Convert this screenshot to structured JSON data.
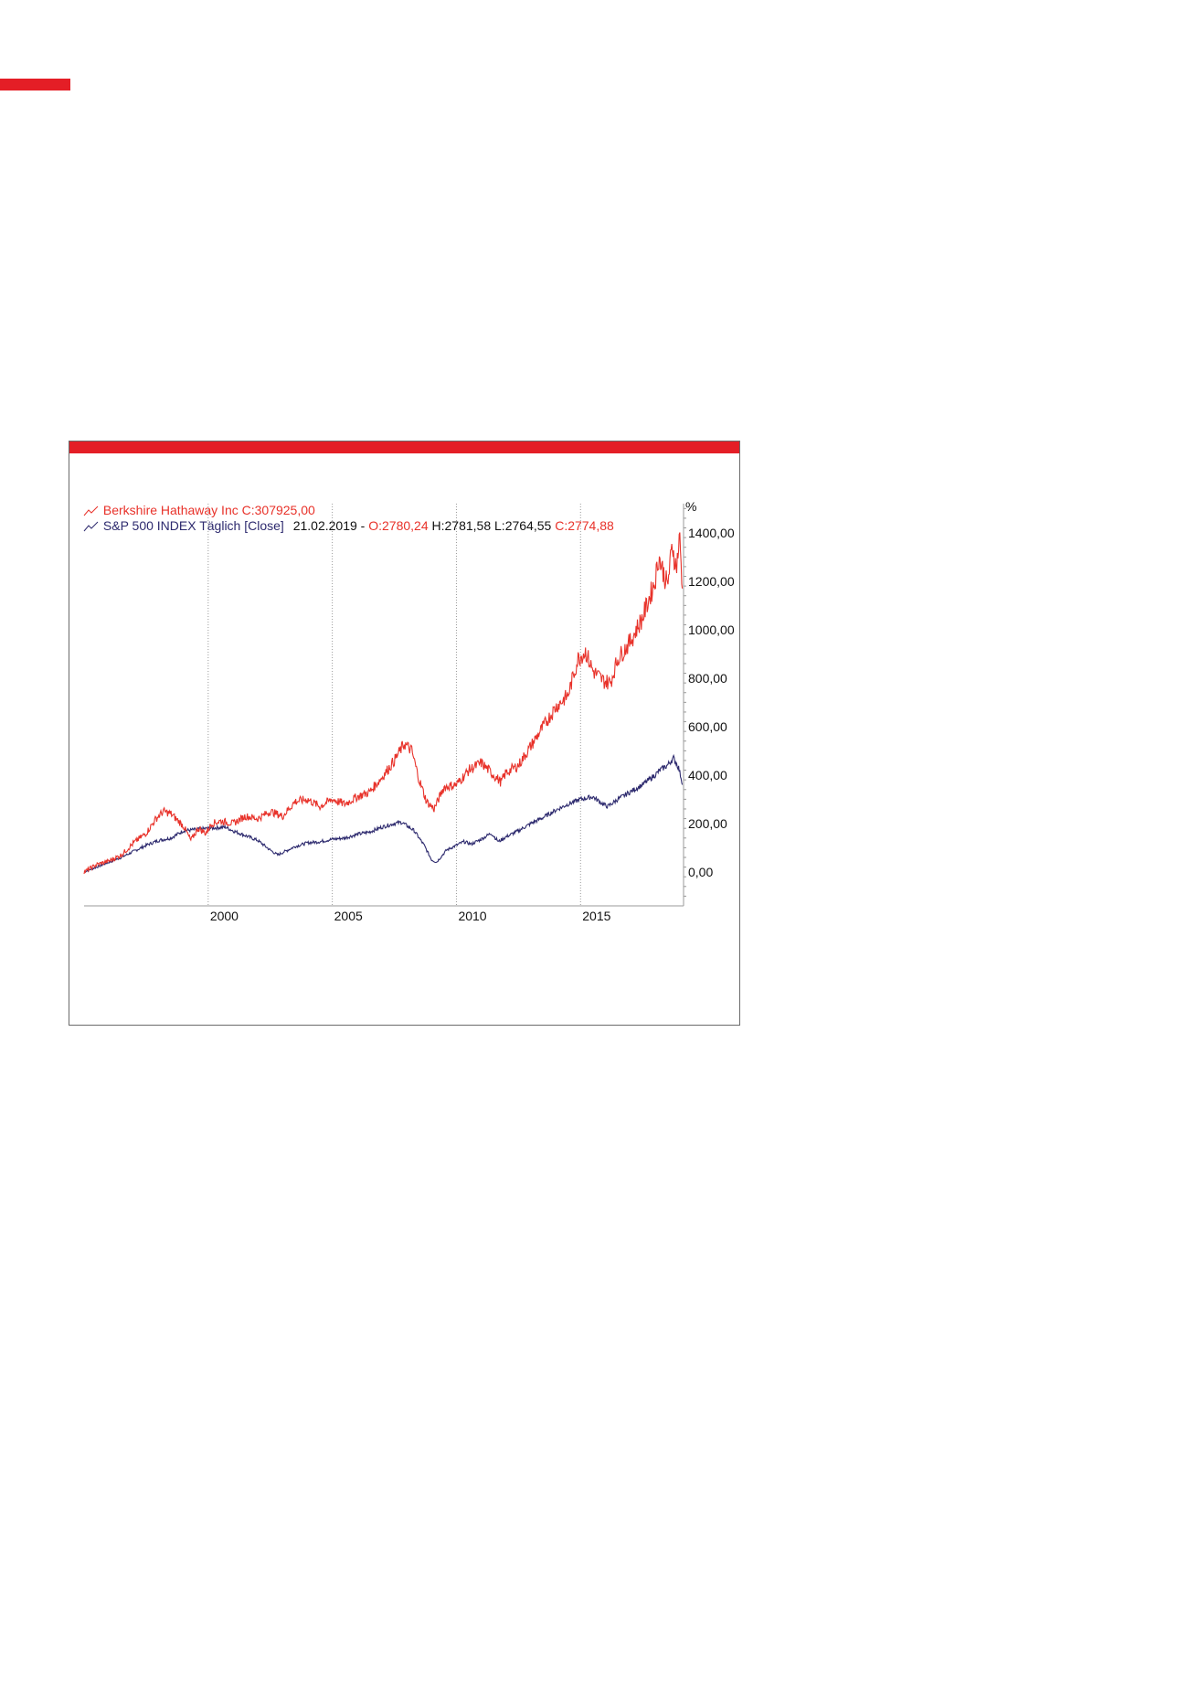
{
  "chart_data": {
    "type": "line",
    "title": "",
    "y_unit_label": "%",
    "x_tick_labels": [
      "2000",
      "2005",
      "2010",
      "2015"
    ],
    "y_tick_labels": [
      "1400,00",
      "1200,00",
      "1000,00",
      "800,00",
      "600,00",
      "400,00",
      "200,00",
      "0,00"
    ],
    "y_ticks": [
      1400,
      1200,
      1000,
      800,
      600,
      400,
      200,
      0
    ],
    "xlim": [
      1995.0,
      2019.15
    ],
    "ylim": [
      -140,
      1520
    ],
    "grid": "vertical dotted lines at year ticks",
    "legend_placement": "top-left",
    "colors": {
      "brk": "#e8322a",
      "spx": "#2d2a6e",
      "accent": "#e41e26"
    },
    "legend": {
      "brk_label": "Berkshire Hathaway Inc C:307925,00",
      "spx_label": "S&P 500 INDEX Täglich [Close]",
      "date": "21.02.2019",
      "sep": "-",
      "open": "O:2780,24",
      "high": "H:2781,58",
      "low": "L:2764,55",
      "close": "C:2774,88"
    },
    "series": [
      {
        "name": "Berkshire Hathaway Inc",
        "color": "#e8322a",
        "x": [
          1995.0,
          1995.5,
          1996.0,
          1996.5,
          1997.0,
          1997.5,
          1997.9,
          1998.2,
          1998.5,
          1998.8,
          1999.0,
          1999.3,
          1999.6,
          1999.9,
          2000.15,
          2000.5,
          2001.0,
          2001.5,
          2002.0,
          2002.5,
          2003.0,
          2003.5,
          2004.0,
          2004.5,
          2005.0,
          2005.5,
          2006.0,
          2006.5,
          2007.0,
          2007.5,
          2007.9,
          2008.2,
          2008.5,
          2008.8,
          2009.1,
          2009.5,
          2010.0,
          2010.5,
          2011.0,
          2011.5,
          2011.8,
          2012.0,
          2012.5,
          2013.0,
          2013.5,
          2014.0,
          2014.5,
          2014.9,
          2015.2,
          2015.5,
          2015.9,
          2016.2,
          2016.5,
          2017.0,
          2017.5,
          2018.0,
          2018.15,
          2018.3,
          2018.5,
          2018.7,
          2018.85,
          2019.0,
          2019.1
        ],
        "y": [
          0,
          30,
          45,
          70,
          120,
          160,
          220,
          250,
          240,
          210,
          190,
          130,
          180,
          160,
          200,
          210,
          200,
          230,
          220,
          250,
          230,
          290,
          300,
          270,
          300,
          280,
          310,
          330,
          390,
          460,
          530,
          500,
          380,
          290,
          260,
          350,
          360,
          420,
          450,
          400,
          370,
          410,
          440,
          520,
          600,
          680,
          730,
          880,
          910,
          830,
          790,
          780,
          880,
          950,
          1050,
          1200,
          1300,
          1250,
          1180,
          1350,
          1250,
          1380,
          1170
        ]
      },
      {
        "name": "S&P 500 INDEX Täglich [Close]",
        "color": "#2d2a6e",
        "x": [
          1995.0,
          1995.5,
          1996.0,
          1996.5,
          1997.0,
          1997.5,
          1998.0,
          1998.5,
          1999.0,
          1999.5,
          2000.0,
          2000.7,
          2001.0,
          2001.5,
          2002.0,
          2002.5,
          2002.8,
          2003.0,
          2003.5,
          2004.0,
          2004.5,
          2005.0,
          2005.5,
          2006.0,
          2006.5,
          2007.0,
          2007.5,
          2007.8,
          2008.3,
          2008.7,
          2009.0,
          2009.2,
          2009.6,
          2010.0,
          2010.3,
          2010.6,
          2011.0,
          2011.4,
          2011.7,
          2012.0,
          2012.5,
          2013.0,
          2013.5,
          2014.0,
          2014.5,
          2015.0,
          2015.5,
          2015.9,
          2016.1,
          2016.5,
          2017.0,
          2017.5,
          2018.0,
          2018.2,
          2018.5,
          2018.75,
          2018.95,
          2019.05,
          2019.1
        ],
        "y": [
          0,
          20,
          40,
          60,
          85,
          110,
          130,
          140,
          170,
          175,
          180,
          185,
          170,
          150,
          130,
          90,
          70,
          80,
          105,
          120,
          125,
          135,
          140,
          155,
          165,
          185,
          200,
          205,
          170,
          110,
          50,
          40,
          90,
          110,
          125,
          115,
          135,
          160,
          125,
          145,
          170,
          200,
          225,
          255,
          280,
          300,
          310,
          280,
          270,
          300,
          330,
          360,
          400,
          420,
          440,
          470,
          430,
          390,
          360
        ]
      }
    ]
  }
}
